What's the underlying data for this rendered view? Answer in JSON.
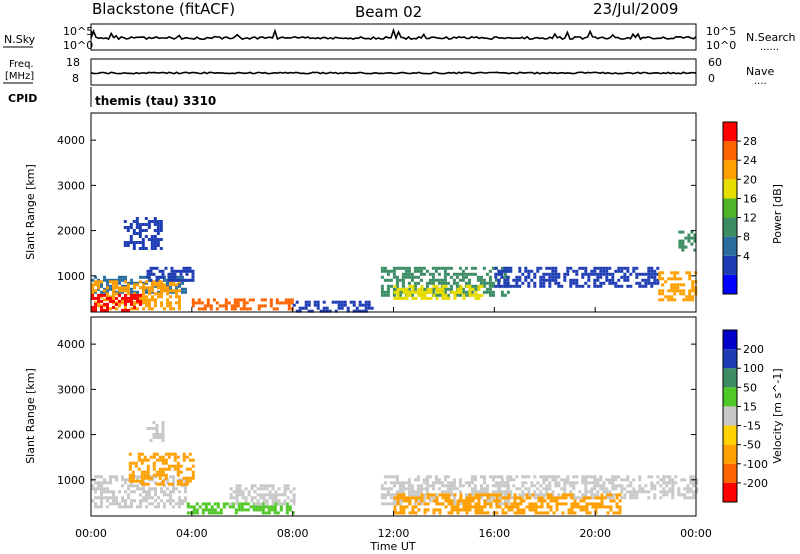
{
  "header": {
    "station": "Blackstone (fitACF)",
    "beam": "Beam 02",
    "date": "23/Jul/2009"
  },
  "top_panels": {
    "nsky_label": "N.Sky",
    "nsearch_label": "N.Search",
    "freq_label_1": "Freq.",
    "freq_label_2": "[MHz]",
    "nave_label": "Nave",
    "cpid_label": "CPID",
    "cpid_value": "themis (tau) 3310",
    "dots": "......",
    "dots_short": "....",
    "nsky_ticks": [
      "10^5",
      "10^0"
    ],
    "nsearch_ticks": [
      "10^5",
      "10^0"
    ],
    "freq_ticks": [
      "18",
      "8"
    ],
    "nave_ticks": [
      "60",
      "0"
    ]
  },
  "chart_data": [
    {
      "type": "heatmap",
      "name": "power",
      "xlabel": "",
      "ylabel": "Slant Range [km]",
      "xlim_hours": [
        0,
        24
      ],
      "ylim_km": [
        200,
        4600
      ],
      "y_ticks": [
        "4000",
        "3000",
        "2000",
        "1000"
      ],
      "y_tick_values": [
        4000,
        3000,
        2000,
        1000
      ],
      "colorbar": {
        "label": "Power [dB]",
        "tick_labels": [
          "28",
          "24",
          "20",
          "16",
          "12",
          "8",
          "4"
        ],
        "colors": [
          "#0000ff",
          "#1e3cb4",
          "#2a6ea0",
          "#3c8c64",
          "#50b428",
          "#e6dc00",
          "#ffa000",
          "#ff6400",
          "#ff0000"
        ]
      },
      "regions": [
        {
          "t": [
            0.0,
            3.8
          ],
          "r": [
            650,
            1000
          ],
          "color": "#2a6ea0"
        },
        {
          "t": [
            0.0,
            3.5
          ],
          "r": [
            300,
            900
          ],
          "color": "#ffa000"
        },
        {
          "t": [
            0.0,
            2.0
          ],
          "r": [
            250,
            600
          ],
          "color": "#ff0000"
        },
        {
          "t": [
            1.3,
            2.8
          ],
          "r": [
            1600,
            2300
          ],
          "color": "#1e3cb4"
        },
        {
          "t": [
            2.2,
            4.0
          ],
          "r": [
            900,
            1200
          ],
          "color": "#1e3cb4"
        },
        {
          "t": [
            4.0,
            8.0
          ],
          "r": [
            250,
            500
          ],
          "color": "#ff6400"
        },
        {
          "t": [
            8.0,
            11.2
          ],
          "r": [
            250,
            450
          ],
          "color": "#1e3cb4"
        },
        {
          "t": [
            11.5,
            16.5
          ],
          "r": [
            600,
            1200
          ],
          "color": "#3c8c64"
        },
        {
          "t": [
            12.0,
            15.5
          ],
          "r": [
            500,
            800
          ],
          "color": "#e6dc00"
        },
        {
          "t": [
            16.0,
            22.5
          ],
          "r": [
            800,
            1200
          ],
          "color": "#1e3cb4"
        },
        {
          "t": [
            22.5,
            24.0
          ],
          "r": [
            500,
            1100
          ],
          "color": "#ffa000"
        },
        {
          "t": [
            23.3,
            24.0
          ],
          "r": [
            1600,
            2000
          ],
          "color": "#3c8c64"
        }
      ]
    },
    {
      "type": "heatmap",
      "name": "velocity",
      "xlabel": "Time UT",
      "ylabel": "Slant Range [km]",
      "xlim_hours": [
        0,
        24
      ],
      "ylim_km": [
        200,
        4600
      ],
      "x_ticks": [
        "00:00",
        "04:00",
        "08:00",
        "12:00",
        "16:00",
        "20:00",
        "00:00"
      ],
      "x_tick_hours": [
        0,
        4,
        8,
        12,
        16,
        20,
        24
      ],
      "y_ticks": [
        "4000",
        "3000",
        "2000",
        "1000"
      ],
      "y_tick_values": [
        4000,
        3000,
        2000,
        1000
      ],
      "colorbar": {
        "label": "Velocity [m s^-1]",
        "tick_labels": [
          "200",
          "100",
          "50",
          "15",
          "-15",
          "-50",
          "-100",
          "-200"
        ],
        "colors": [
          "#ff0000",
          "#ff6400",
          "#ffa000",
          "#ffd200",
          "#c8c8c8",
          "#50c828",
          "#3c8c64",
          "#1e3cb4",
          "#0000c8"
        ]
      },
      "regions": [
        {
          "t": [
            0.0,
            3.8
          ],
          "r": [
            400,
            1100
          ],
          "color": "#c8c8c8"
        },
        {
          "t": [
            1.5,
            4.0
          ],
          "r": [
            900,
            1600
          ],
          "color": "#ffa000"
        },
        {
          "t": [
            2.2,
            2.8
          ],
          "r": [
            1900,
            2300
          ],
          "color": "#c8c8c8"
        },
        {
          "t": [
            3.8,
            8.0
          ],
          "r": [
            250,
            500
          ],
          "color": "#50c828"
        },
        {
          "t": [
            5.5,
            8.0
          ],
          "r": [
            500,
            900
          ],
          "color": "#c8c8c8"
        },
        {
          "t": [
            11.5,
            16.5
          ],
          "r": [
            500,
            1100
          ],
          "color": "#c8c8c8"
        },
        {
          "t": [
            16.0,
            24.0
          ],
          "r": [
            600,
            1100
          ],
          "color": "#c8c8c8"
        },
        {
          "t": [
            12.0,
            21.0
          ],
          "r": [
            250,
            700
          ],
          "color": "#ffa000"
        }
      ]
    }
  ]
}
